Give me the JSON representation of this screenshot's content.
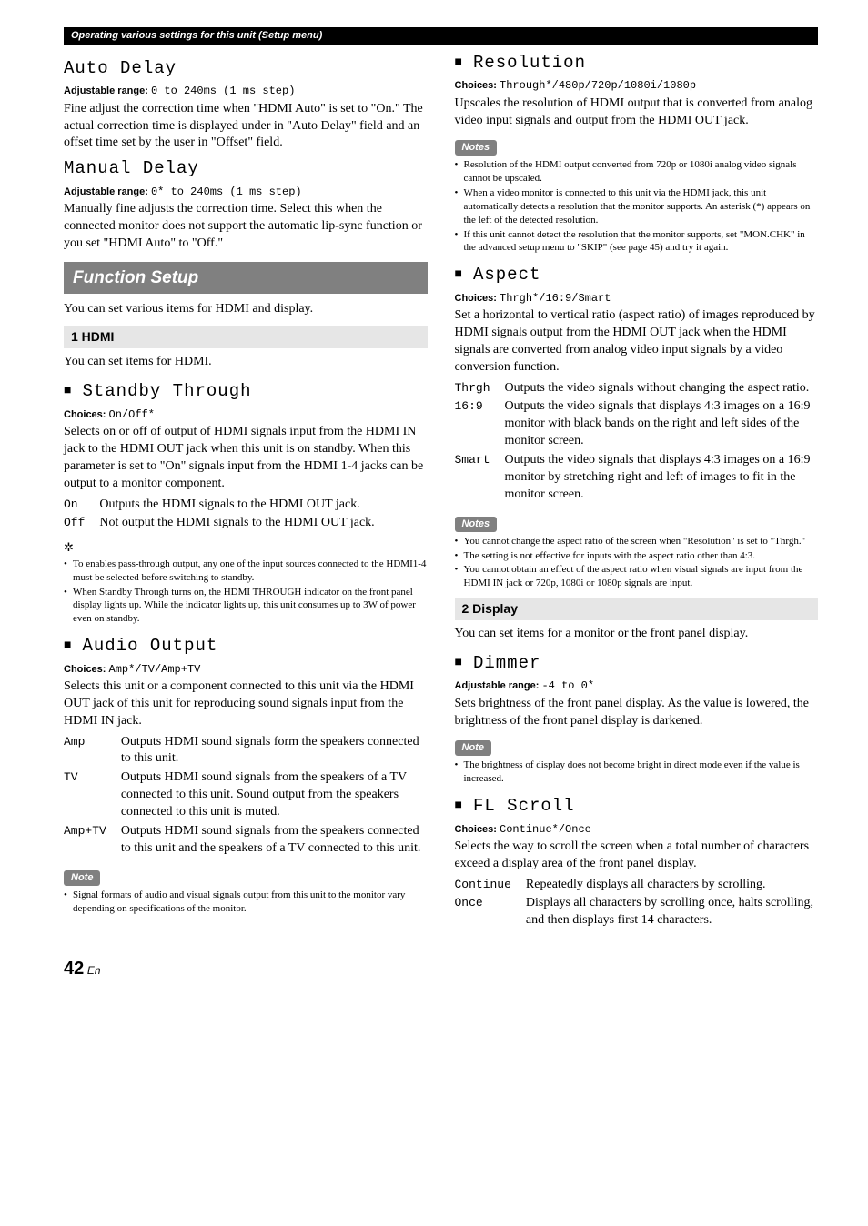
{
  "header_bar": "Operating various settings for this unit (Setup menu)",
  "left": {
    "auto_delay": {
      "title": "Auto Delay",
      "range_label": "Adjustable range:",
      "range_value": "0 to 240ms (1 ms step)",
      "body": "Fine adjust the correction time when \"HDMI Auto\" is set to \"On.\" The actual correction time is displayed under in \"Auto Delay\" field and an offset time set by the user in \"Offset\" field."
    },
    "manual_delay": {
      "title": "Manual Delay",
      "range_label": "Adjustable range:",
      "range_value": "0* to 240ms (1 ms step)",
      "body": "Manually fine adjusts the correction time. Select this when the connected monitor does not support the automatic lip-sync function or you set \"HDMI Auto\" to \"Off.\""
    },
    "function_setup": {
      "banner": "Function Setup",
      "intro": "You can set various items for HDMI and display."
    },
    "hdmi": {
      "heading": "1 HDMI",
      "intro": "You can set items for HDMI."
    },
    "standby": {
      "title": "Standby Through",
      "choices_label": "Choices:",
      "choices_value": "On/Off*",
      "body": "Selects on or off of output of HDMI signals input from the HDMI IN jack to the HDMI OUT jack when this unit is on standby. When this parameter is set to \"On\" signals input from the HDMI 1-4 jacks can be output to a monitor component.",
      "rows": [
        {
          "k": "On",
          "v": "Outputs the HDMI signals to the HDMI OUT jack."
        },
        {
          "k": "Off",
          "v": "Not output the HDMI signals to the HDMI OUT jack."
        }
      ],
      "tip_mark": "✲",
      "tips": [
        "To enables pass-through output, any one of the input sources connected to the HDMI1-4 must be selected before switching to standby.",
        "When Standby Through turns on, the HDMI THROUGH indicator on the front panel display lights up. While the indicator lights up, this unit consumes up to 3W of power even on standby."
      ]
    },
    "audio_output": {
      "title": "Audio Output",
      "choices_label": "Choices:",
      "choices_value": "Amp*/TV/Amp+TV",
      "body": "Selects this unit or a component connected to this unit via the HDMI OUT jack of this unit for reproducing sound signals input from the HDMI IN jack.",
      "rows": [
        {
          "k": "Amp",
          "v": "Outputs HDMI sound signals form the speakers connected to this unit."
        },
        {
          "k": "TV",
          "v": "Outputs HDMI sound signals from the speakers of a TV connected to this unit. Sound output from the speakers connected to this unit is muted."
        },
        {
          "k": "Amp+TV",
          "v": "Outputs HDMI sound signals from the speakers connected to this unit and the speakers of a TV connected to this unit."
        }
      ],
      "note_label": "Note",
      "notes": [
        "Signal formats of audio and visual signals output from this unit to the monitor vary depending on specifications of the monitor."
      ]
    }
  },
  "right": {
    "resolution": {
      "title": "Resolution",
      "choices_label": "Choices:",
      "choices_value": "Through*/480p/720p/1080i/1080p",
      "body": "Upscales the resolution of HDMI output that is converted from analog video input signals and output from the HDMI OUT jack.",
      "note_label": "Notes",
      "notes": [
        "Resolution of the HDMI output converted from 720p or 1080i analog video signals cannot be upscaled.",
        "When a video monitor is connected to this unit via the HDMI jack, this unit automatically detects a resolution that the monitor supports. An asterisk (*) appears on the left of the detected resolution.",
        "If this unit cannot detect the resolution that the monitor supports, set \"MON.CHK\" in the advanced setup menu to \"SKIP\" (see page 45) and try it again."
      ]
    },
    "aspect": {
      "title": "Aspect",
      "choices_label": "Choices:",
      "choices_value": "Thrgh*/16:9/Smart",
      "body": "Set a horizontal to vertical ratio (aspect ratio) of images reproduced by HDMI signals output from the HDMI OUT jack when the HDMI signals are converted from analog video input signals by a video conversion function.",
      "rows": [
        {
          "k": "Thrgh",
          "v": "Outputs the video signals without changing the aspect ratio."
        },
        {
          "k": "16:9",
          "v": "Outputs the video signals that displays 4:3 images on a 16:9 monitor with black bands on the right and left sides of the monitor screen."
        },
        {
          "k": "Smart",
          "v": "Outputs the video signals that displays 4:3 images on a 16:9 monitor by stretching right and left of images to fit in the monitor screen."
        }
      ],
      "note_label": "Notes",
      "notes": [
        "You cannot change the aspect ratio of the screen when \"Resolution\" is set to \"Thrgh.\"",
        "The setting is not effective for inputs with the aspect ratio other than 4:3.",
        "You cannot obtain an effect of the aspect ratio when visual signals are input from the HDMI IN jack or 720p, 1080i or 1080p signals are input."
      ]
    },
    "display": {
      "heading": "2 Display",
      "intro": "You can set items for a monitor or the front panel display."
    },
    "dimmer": {
      "title": "Dimmer",
      "range_label": "Adjustable range:",
      "range_value": "-4 to 0*",
      "body": "Sets brightness of the front panel display. As the value is lowered, the brightness of the front panel display is darkened.",
      "note_label": "Note",
      "notes": [
        "The brightness of display does not become bright in direct mode even if the value is increased."
      ]
    },
    "flscroll": {
      "title": "FL Scroll",
      "choices_label": "Choices:",
      "choices_value": "Continue*/Once",
      "body": "Selects the way to scroll the screen when a total number of characters exceed a display area of the front panel display.",
      "rows": [
        {
          "k": "Continue",
          "v": "Repeatedly displays all characters by scrolling."
        },
        {
          "k": "Once",
          "v": "Displays all characters by scrolling once, halts scrolling, and then displays first 14 characters."
        }
      ]
    }
  },
  "page": {
    "num": "42",
    "suffix": "En"
  }
}
